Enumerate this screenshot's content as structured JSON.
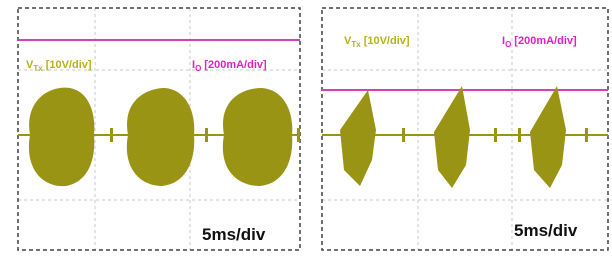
{
  "panels": [
    {
      "voltage_label": {
        "symbol": "V",
        "subscript": "Tx",
        "scale": "[10V/div]"
      },
      "current_label": {
        "symbol": "I",
        "subscript": "O",
        "scale": "[200mA/div]"
      },
      "timebase": "5ms/div"
    },
    {
      "voltage_label": {
        "symbol": "V",
        "subscript": "Tx",
        "scale": "[10V/div]"
      },
      "current_label": {
        "symbol": "I",
        "subscript": "O",
        "scale": "[200mA/div]"
      },
      "timebase": "5ms/div"
    }
  ]
}
